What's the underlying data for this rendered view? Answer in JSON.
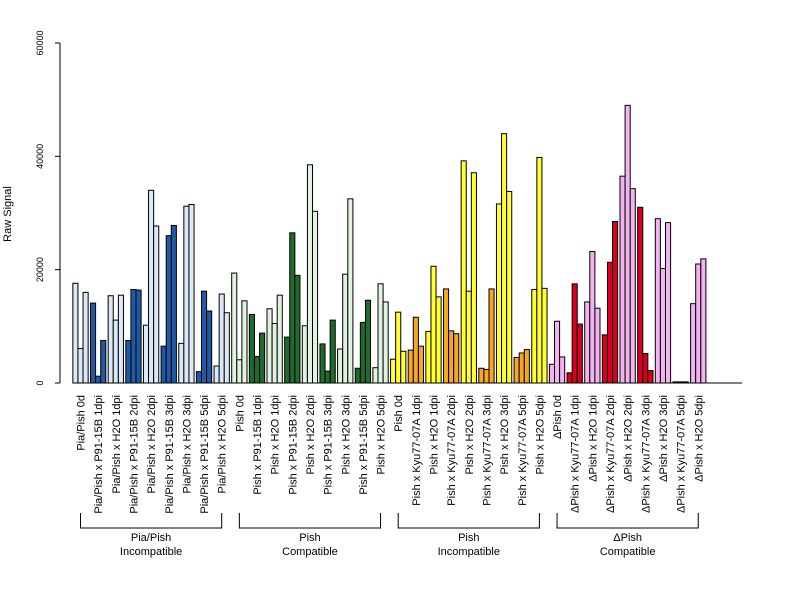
{
  "chart_data": {
    "type": "bar",
    "ylabel": "Raw Signal",
    "ylim": [
      0,
      60000
    ],
    "yticks": [
      "0",
      "20000",
      "40000",
      "60000"
    ],
    "grid": false,
    "categories": [
      "Pia/Pish 0d",
      "Pia/Pish x P91-15B 1dpi",
      "Pia/Pish x H2O 1dpi",
      "Pia/Pish x P91-15B 2dpi",
      "Pia/Pish x H2O 2dpi",
      "Pia/Pish x P91-15B 3dpi",
      "Pia/Pish x H2O 3dpi",
      "Pia/Pish x P91-15B 5dpi",
      "Pia/Pish x H2O 5dpi",
      "Pish 0d",
      "Pish x P91-15B 1dpi",
      "Pish x H2O 1dpi",
      "Pish x P91-15B 2dpi",
      "Pish x H2O 2dpi",
      "Pish x P91-15B 3dpi",
      "Pish x H2O 3dpi",
      "Pish x P91-15B 5dpi",
      "Pish x H2O 5dpi",
      "Pish 0d",
      "Pish x Kyu77-07A 1dpi",
      "Pish x H2O 1dpi",
      "Pish x Kyu77-07A 2dpi",
      "Pish x H2O 2dpi",
      "Pish x Kyu77-07A 3dpi",
      "Pish x H2O 3dpi",
      "Pish x Kyu77-07A 5dpi",
      "Pish x H2O 5dpi",
      "ΔPish 0d",
      "ΔPish x Kyu77-07A 1dpi",
      "ΔPish x H2O 1dpi",
      "ΔPish x Kyu77-07A 2dpi",
      "ΔPish x H2O 2dpi",
      "ΔPish x Kyu77-07A 3dpi",
      "ΔPish x H2O 3dpi",
      "ΔPish x Kyu77-07A 5dpi",
      "ΔPish x H2O 5dpi"
    ],
    "values": [
      [
        17600,
        6100,
        16000
      ],
      [
        14100,
        1200,
        7500
      ],
      [
        15400,
        11100,
        15500
      ],
      [
        7500,
        16500,
        16400
      ],
      [
        10200,
        34000,
        27700
      ],
      [
        6500,
        26000,
        27800
      ],
      [
        7000,
        31200,
        31500
      ],
      [
        2000,
        16200,
        12700
      ],
      [
        3000,
        15700,
        12400
      ],
      [
        19400,
        4100,
        14500
      ],
      [
        12100,
        4700,
        8800
      ],
      [
        13100,
        10500,
        15500
      ],
      [
        8100,
        26500,
        19000
      ],
      [
        10100,
        38500,
        30300
      ],
      [
        6900,
        2100,
        11100
      ],
      [
        6000,
        19200,
        32500
      ],
      [
        2600,
        10700,
        14600
      ],
      [
        2700,
        17500,
        14300
      ],
      [
        4200,
        12500,
        5600
      ],
      [
        5800,
        11600,
        6500
      ],
      [
        9100,
        20600,
        15200
      ],
      [
        16600,
        9200,
        8700
      ],
      [
        39200,
        16200,
        37100
      ],
      [
        2600,
        2400,
        16600
      ],
      [
        31600,
        44000,
        33800
      ],
      [
        4500,
        5300,
        5900
      ],
      [
        16500,
        39800,
        16700
      ],
      [
        3300,
        10900,
        4600
      ],
      [
        1800,
        17500,
        10400
      ],
      [
        14300,
        23200,
        13200
      ],
      [
        8500,
        21300,
        28500
      ],
      [
        36500,
        49000,
        34300
      ],
      [
        31000,
        5200,
        2200
      ],
      [
        29000,
        20200,
        28300
      ],
      [
        200,
        200,
        200
      ],
      [
        14000,
        21000,
        21900
      ]
    ],
    "bar_colors": [
      "#dce8f7",
      "#1f5aa6",
      "#dce8f7",
      "#1f5aa6",
      "#dce8f7",
      "#1f5aa6",
      "#dce8f7",
      "#1f5aa6",
      "#dce8f7",
      "#e2f2e0",
      "#1e6b2d",
      "#e2f2e0",
      "#1e6b2d",
      "#e2f2e0",
      "#1e6b2d",
      "#e2f2e0",
      "#1e6b2d",
      "#e2f2e0",
      "#ffff33",
      "#f5a623",
      "#ffff33",
      "#f5a623",
      "#ffff33",
      "#f5a623",
      "#ffff33",
      "#f5a623",
      "#ffff33",
      "#f3b3f0",
      "#d7001f",
      "#f3b3f0",
      "#d7001f",
      "#f3b3f0",
      "#d7001f",
      "#f3b3f0",
      "#d7001f",
      "#f3b3f0"
    ],
    "groups": [
      {
        "line1": "Pia/Pish",
        "line2": "Incompatible",
        "start": 0,
        "end": 8
      },
      {
        "line1": "Pish",
        "line2": "Compatible",
        "start": 9,
        "end": 17
      },
      {
        "line1": "Pish",
        "line2": "Incompatible",
        "start": 18,
        "end": 26
      },
      {
        "line1": "ΔPish",
        "line2": "Compatible",
        "start": 27,
        "end": 35
      }
    ]
  }
}
